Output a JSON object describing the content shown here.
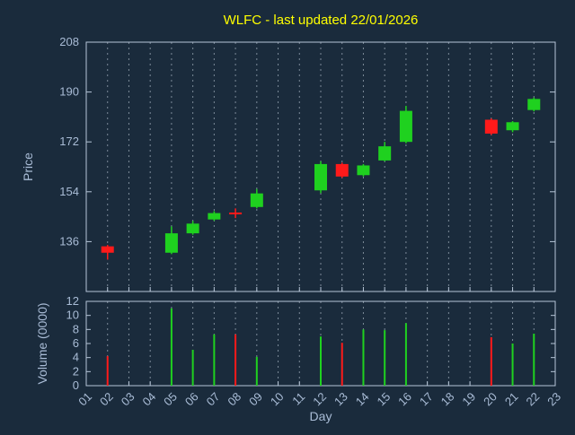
{
  "title": "WLFC - last updated 22/01/2026",
  "colors": {
    "background": "#1a2b3c",
    "title": "#ffff00",
    "label": "#a9bcd6",
    "grid": "#cdd9e5",
    "axis": "#b7c6d8",
    "up": "#1fd11f",
    "down": "#ff1a1a"
  },
  "chart_data": {
    "type": "candlestick-with-volume",
    "title": "WLFC - last updated 22/01/2026",
    "xlabel": "Day",
    "legend": "none",
    "grid": "vertical-dashed",
    "price_axis": {
      "label": "Price",
      "ticks": [
        136,
        154,
        172,
        190,
        208
      ],
      "min": 118,
      "max": 208
    },
    "volume_axis": {
      "label": "Volume (0000)",
      "ticks": [
        0,
        2,
        4,
        6,
        8,
        10,
        12
      ],
      "min": 0,
      "max": 12
    },
    "x_axis": {
      "min": 1,
      "max": 23,
      "tick_labels": [
        "01",
        "02",
        "03",
        "04",
        "05",
        "06",
        "07",
        "08",
        "09",
        "10",
        "11",
        "12",
        "13",
        "14",
        "15",
        "16",
        "17",
        "18",
        "19",
        "20",
        "21",
        "22",
        "23"
      ]
    },
    "candles": [
      {
        "day": 2,
        "open": 134.3,
        "high": 134.8,
        "low": 129.5,
        "close": 132.0,
        "volume": 4.2
      },
      {
        "day": 5,
        "open": 132.0,
        "high": 141.5,
        "low": 131.5,
        "close": 139.0,
        "volume": 11.0
      },
      {
        "day": 6,
        "open": 139.0,
        "high": 143.5,
        "low": 138.5,
        "close": 142.5,
        "volume": 5.1
      },
      {
        "day": 7,
        "open": 144.0,
        "high": 147.0,
        "low": 143.5,
        "close": 146.3,
        "volume": 7.3
      },
      {
        "day": 8,
        "open": 146.5,
        "high": 148.0,
        "low": 144.5,
        "close": 146.0,
        "volume": 7.3
      },
      {
        "day": 9,
        "open": 148.5,
        "high": 155.0,
        "low": 148.0,
        "close": 153.4,
        "volume": 4.1
      },
      {
        "day": 12,
        "open": 154.5,
        "high": 165.0,
        "low": 153.5,
        "close": 164.0,
        "volume": 7.0
      },
      {
        "day": 13,
        "open": 164.0,
        "high": 164.5,
        "low": 159.0,
        "close": 159.5,
        "volume": 6.1
      },
      {
        "day": 14,
        "open": 160.0,
        "high": 164.0,
        "low": 159.5,
        "close": 163.5,
        "volume": 8.0
      },
      {
        "day": 15,
        "open": 165.3,
        "high": 172.0,
        "low": 165.0,
        "close": 170.4,
        "volume": 7.9
      },
      {
        "day": 16,
        "open": 172.0,
        "high": 185.0,
        "low": 171.5,
        "close": 183.2,
        "volume": 8.9
      },
      {
        "day": 20,
        "open": 180.0,
        "high": 180.5,
        "low": 174.5,
        "close": 175.0,
        "volume": 6.9
      },
      {
        "day": 21,
        "open": 176.2,
        "high": 179.5,
        "low": 175.5,
        "close": 179.1,
        "volume": 6.0
      },
      {
        "day": 22,
        "open": 183.5,
        "high": 188.0,
        "low": 183.0,
        "close": 187.5,
        "volume": 7.4
      }
    ]
  }
}
